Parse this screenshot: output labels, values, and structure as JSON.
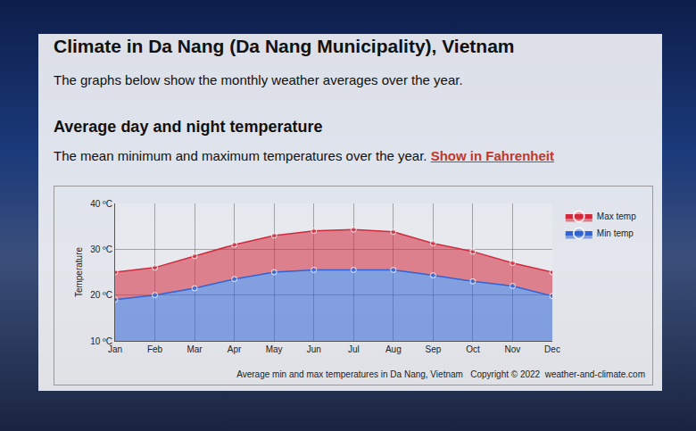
{
  "page": {
    "heading": "Climate in Da Nang (Da Nang Municipality), Vietnam",
    "intro": "The graphs below show the monthly weather averages over the year.",
    "subheading": "Average day and night temperature",
    "description": "The mean minimum and maximum temperatures over the year.",
    "link": "Show in Fahrenheit",
    "caption": "Average min and max temperatures in Da Nang, Vietnam",
    "copyright": "Copyright © 2022  weather-and-climate.com"
  },
  "chart_data": {
    "type": "area",
    "y_label": "Temperature",
    "categories": [
      "Jan",
      "Feb",
      "Mar",
      "Apr",
      "May",
      "Jun",
      "Jul",
      "Aug",
      "Sep",
      "Oct",
      "Nov",
      "Dec"
    ],
    "series": [
      {
        "name": "Max temp",
        "color": "#d12a3c",
        "marker": "circle",
        "values": [
          25,
          26,
          28.5,
          31,
          33,
          34,
          34.3,
          33.8,
          31.3,
          29.5,
          27,
          25
        ]
      },
      {
        "name": "Min temp",
        "color": "#2f63d6",
        "marker": "circle",
        "values": [
          19,
          20,
          21.5,
          23.5,
          25,
          25.5,
          25.5,
          25.5,
          24.3,
          23,
          22,
          19.8
        ]
      }
    ],
    "ylim": [
      10,
      40
    ],
    "yticks": [
      {
        "value": 10,
        "label": "10 ºC"
      },
      {
        "value": 20,
        "label": "20 ºC"
      },
      {
        "value": 30,
        "label": "30 ºC"
      },
      {
        "value": 40,
        "label": "40 ºC"
      }
    ],
    "grid": true,
    "legend": "top-right"
  }
}
